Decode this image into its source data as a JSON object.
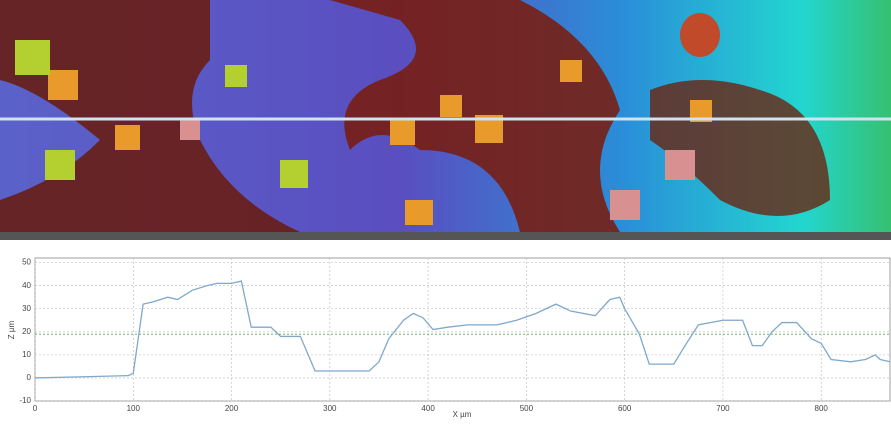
{
  "chart_data": {
    "type": "line",
    "xlabel": "X µm",
    "ylabel": "Z µm",
    "x": [
      0,
      50,
      95,
      100,
      110,
      120,
      135,
      145,
      160,
      175,
      185,
      200,
      210,
      220,
      240,
      250,
      270,
      285,
      300,
      340,
      350,
      360,
      375,
      385,
      395,
      405,
      420,
      440,
      470,
      490,
      510,
      530,
      545,
      570,
      585,
      595,
      600,
      615,
      625,
      650,
      660,
      675,
      700,
      720,
      730,
      740,
      750,
      760,
      775,
      790,
      800,
      810,
      830,
      845,
      855,
      860,
      870
    ],
    "values": [
      0,
      0.5,
      1,
      2,
      32,
      33,
      35,
      34,
      38,
      40,
      41,
      41,
      42,
      22,
      22,
      18,
      18,
      3,
      3,
      3,
      7,
      17,
      25,
      28,
      26,
      21,
      22,
      23,
      23,
      25,
      28,
      32,
      29,
      27,
      34,
      35,
      30,
      19,
      6,
      6,
      13,
      23,
      25,
      25,
      14,
      14,
      20,
      24,
      24,
      17,
      15,
      8,
      7,
      8,
      10,
      8,
      7
    ],
    "color": "#7fa8cc",
    "xlim": [
      0,
      870
    ],
    "ylim": [
      -10,
      52
    ],
    "xticks": [
      0,
      100,
      200,
      300,
      400,
      500,
      600,
      700,
      800
    ],
    "yticks": [
      -10,
      0,
      10,
      20,
      30,
      40,
      50
    ],
    "reference_line": 19,
    "reference_color": "#3a9a3a",
    "grid": true
  }
}
